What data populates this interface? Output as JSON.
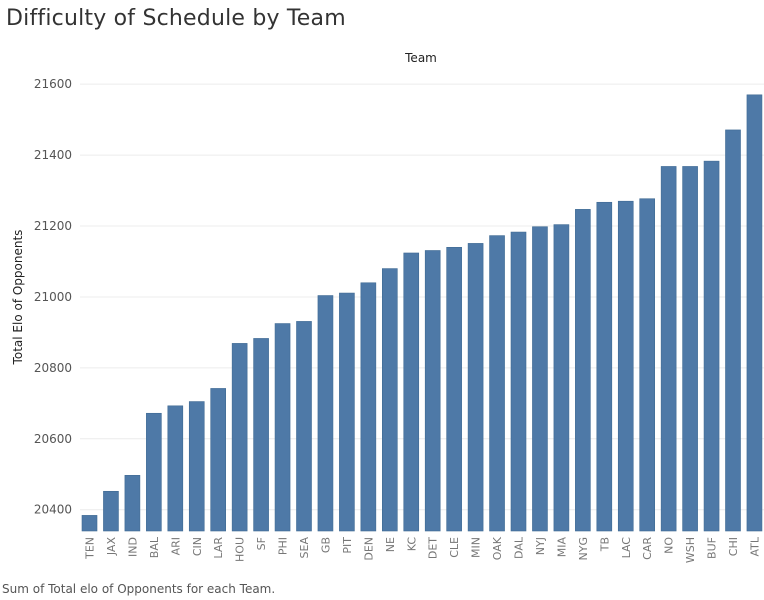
{
  "title": "Difficulty of Schedule by Team",
  "footer": "Sum of Total elo of Opponents for each Team.",
  "chart_data": {
    "type": "bar",
    "title": "Difficulty of Schedule by Team",
    "xlabel": "Team",
    "ylabel": "Total Elo of Opponents",
    "ylim": [
      20340,
      21640
    ],
    "yticks": [
      20400,
      20600,
      20800,
      21000,
      21200,
      21400,
      21600
    ],
    "grid": "horizontal",
    "bar_color": "#4e79a7",
    "categories": [
      "TEN",
      "JAX",
      "IND",
      "BAL",
      "ARI",
      "CIN",
      "LAR",
      "HOU",
      "SF",
      "PHI",
      "SEA",
      "GB",
      "PIT",
      "DEN",
      "NE",
      "KC",
      "DET",
      "CLE",
      "MIN",
      "OAK",
      "DAL",
      "NYJ",
      "MIA",
      "NYG",
      "TB",
      "LAC",
      "CAR",
      "NO",
      "WSH",
      "BUF",
      "CHI",
      "ATL"
    ],
    "values": [
      20384,
      20452,
      20497,
      20672,
      20693,
      20705,
      20742,
      20869,
      20883,
      20925,
      20931,
      21004,
      21011,
      21040,
      21080,
      21124,
      21131,
      21140,
      21151,
      21173,
      21183,
      21198,
      21204,
      21247,
      21267,
      21270,
      21277,
      21368,
      21368,
      21383,
      21471,
      21570
    ]
  }
}
